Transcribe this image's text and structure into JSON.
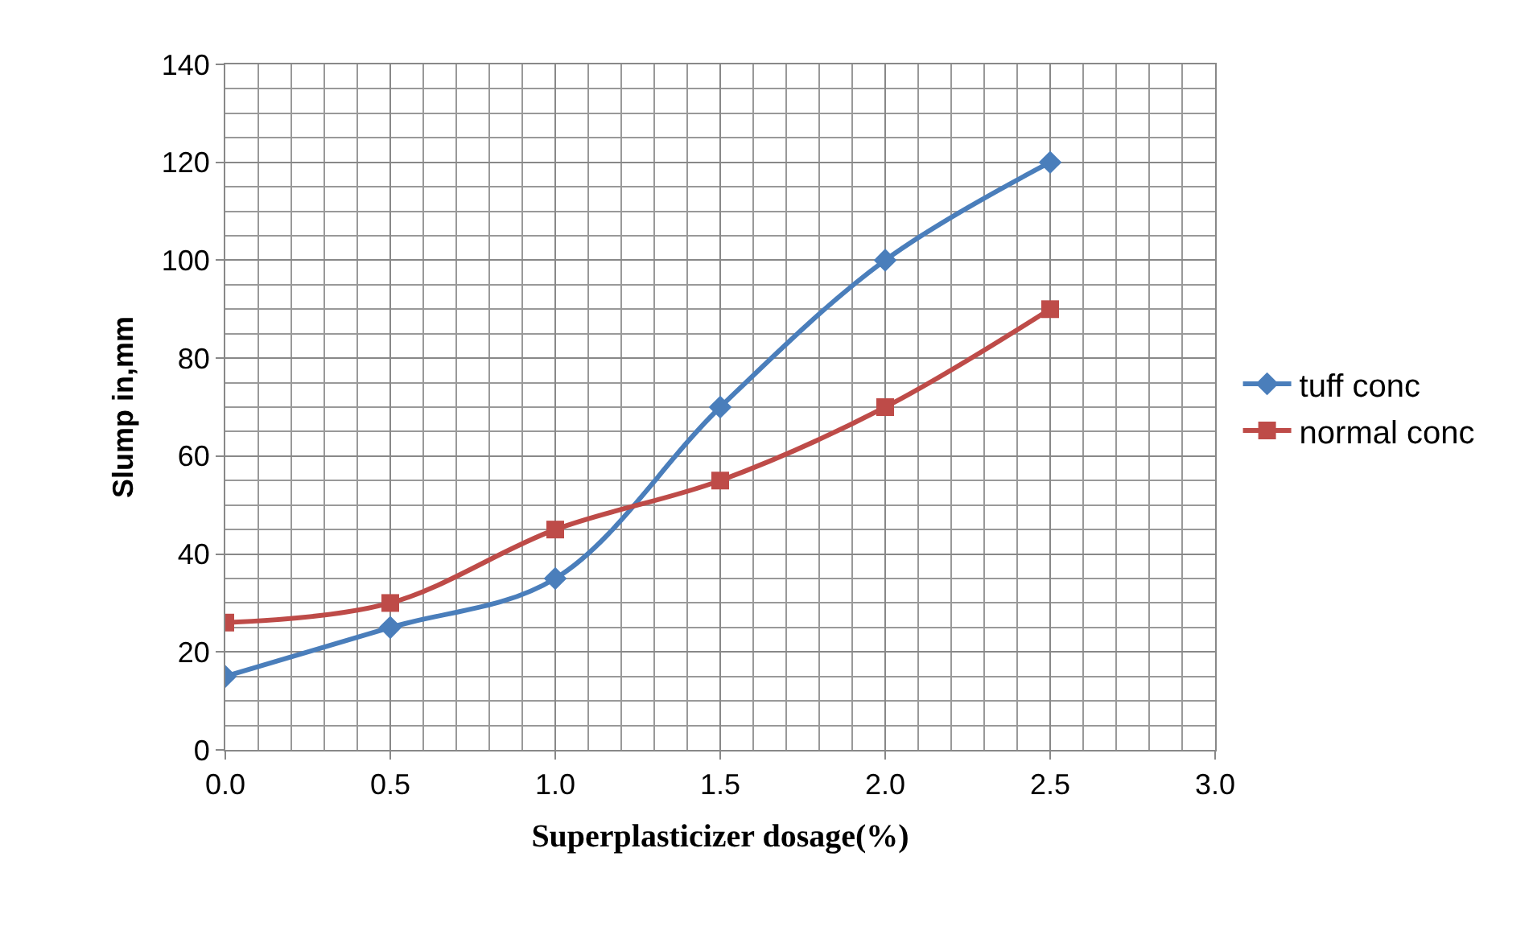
{
  "chart_data": {
    "type": "line",
    "xlabel": "Superplasticizer dosage(%)",
    "ylabel": "Slump in,mm",
    "x": [
      0,
      0.5,
      1,
      1.5,
      2,
      2.5
    ],
    "series": [
      {
        "name": "tuff conc",
        "color": "#4a7ebb",
        "marker": "diamond",
        "values": [
          15,
          25,
          35,
          70,
          100,
          120
        ]
      },
      {
        "name": "normal conc",
        "color": "#be4b48",
        "marker": "square",
        "values": [
          26,
          30,
          45,
          55,
          70,
          90
        ]
      }
    ],
    "xlim": [
      0,
      3
    ],
    "xticks": [
      {
        "value": 0,
        "label": "0.0"
      },
      {
        "value": 0.5,
        "label": "0.5"
      },
      {
        "value": 1,
        "label": "1.0"
      },
      {
        "value": 1.5,
        "label": "1.5"
      },
      {
        "value": 2,
        "label": "2.0"
      },
      {
        "value": 2.5,
        "label": "2.5"
      },
      {
        "value": 3,
        "label": "3.0"
      }
    ],
    "ylim": [
      0,
      140
    ],
    "yticks": [
      0,
      20,
      40,
      60,
      80,
      100,
      120,
      140
    ],
    "grid": true,
    "legend": "right",
    "line_style": "solid"
  }
}
